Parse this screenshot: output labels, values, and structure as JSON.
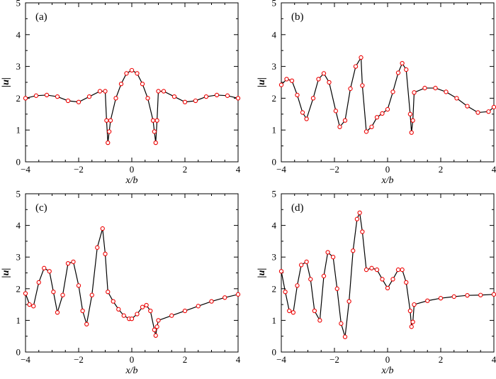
{
  "colors": {
    "curve": "#000000",
    "markers": "#ee0000",
    "axes": "#000000",
    "background": "#ffffff"
  },
  "chart_data": [
    {
      "type": "line",
      "panel_label": "(a)",
      "xlabel": "x/b",
      "ylabel": "|u|",
      "xlim": [
        -4,
        4
      ],
      "ylim": [
        0,
        5
      ],
      "xticks": [
        -4,
        -2,
        0,
        2,
        4
      ],
      "yticks": [
        0,
        1,
        2,
        3,
        4,
        5
      ],
      "grid": false,
      "legend": "none",
      "x": [
        -4.0,
        -3.6,
        -3.2,
        -2.8,
        -2.4,
        -2.0,
        -1.6,
        -1.2,
        -1.0,
        -0.95,
        -0.9,
        -0.85,
        -0.8,
        -0.6,
        -0.4,
        -0.2,
        0.0,
        0.2,
        0.4,
        0.6,
        0.8,
        0.85,
        0.9,
        0.95,
        1.0,
        1.2,
        1.6,
        2.0,
        2.4,
        2.8,
        3.2,
        3.6,
        4.0
      ],
      "y": [
        2.0,
        2.08,
        2.1,
        2.05,
        1.92,
        1.88,
        2.05,
        2.22,
        2.22,
        1.3,
        0.6,
        0.95,
        1.3,
        2.0,
        2.45,
        2.78,
        2.88,
        2.78,
        2.45,
        2.0,
        1.3,
        0.95,
        0.6,
        1.3,
        2.22,
        2.22,
        2.05,
        1.88,
        1.92,
        2.05,
        2.1,
        2.08,
        2.0
      ]
    },
    {
      "type": "line",
      "panel_label": "(b)",
      "xlabel": "x/b",
      "ylabel": "|u|",
      "xlim": [
        -4,
        4
      ],
      "ylim": [
        0,
        5
      ],
      "xticks": [
        -4,
        -2,
        0,
        2,
        4
      ],
      "yticks": [
        0,
        1,
        2,
        3,
        4,
        5
      ],
      "grid": false,
      "legend": "none",
      "x": [
        -4.0,
        -3.8,
        -3.6,
        -3.4,
        -3.2,
        -3.05,
        -2.8,
        -2.6,
        -2.4,
        -2.2,
        -1.95,
        -1.8,
        -1.6,
        -1.4,
        -1.2,
        -1.0,
        -0.95,
        -0.8,
        -0.6,
        -0.4,
        -0.2,
        0.0,
        0.2,
        0.4,
        0.55,
        0.7,
        0.85,
        0.9,
        0.95,
        1.0,
        1.4,
        1.8,
        2.2,
        2.6,
        3.0,
        3.4,
        3.8,
        4.0
      ],
      "y": [
        2.42,
        2.6,
        2.55,
        2.1,
        1.55,
        1.35,
        2.0,
        2.6,
        2.78,
        2.5,
        1.6,
        1.1,
        1.3,
        2.3,
        3.0,
        3.28,
        2.4,
        0.95,
        1.1,
        1.4,
        1.52,
        1.65,
        2.2,
        2.8,
        3.1,
        2.9,
        1.5,
        0.92,
        1.3,
        2.18,
        2.32,
        2.32,
        2.2,
        2.0,
        1.75,
        1.55,
        1.58,
        1.72
      ]
    },
    {
      "type": "line",
      "panel_label": "(c)",
      "xlabel": "x/b",
      "ylabel": "|u|",
      "xlim": [
        -4,
        4
      ],
      "ylim": [
        0,
        5
      ],
      "xticks": [
        -4,
        -2,
        0,
        2,
        4
      ],
      "yticks": [
        0,
        1,
        2,
        3,
        4,
        5
      ],
      "grid": false,
      "legend": "none",
      "x": [
        -4.0,
        -3.85,
        -3.7,
        -3.5,
        -3.3,
        -3.1,
        -2.95,
        -2.8,
        -2.6,
        -2.4,
        -2.2,
        -2.0,
        -1.85,
        -1.7,
        -1.5,
        -1.3,
        -1.1,
        -1.0,
        -0.9,
        -0.7,
        -0.5,
        -0.3,
        -0.1,
        0.0,
        0.2,
        0.4,
        0.55,
        0.7,
        0.85,
        0.9,
        0.95,
        1.0,
        1.5,
        2.0,
        2.5,
        3.0,
        3.5,
        4.0
      ],
      "y": [
        1.85,
        1.5,
        1.45,
        2.2,
        2.65,
        2.55,
        1.9,
        1.25,
        1.8,
        2.8,
        2.85,
        2.1,
        1.3,
        0.88,
        1.8,
        3.3,
        3.9,
        3.1,
        1.9,
        1.6,
        1.35,
        1.15,
        1.05,
        1.05,
        1.2,
        1.42,
        1.48,
        1.3,
        0.7,
        0.52,
        0.8,
        1.0,
        1.15,
        1.3,
        1.45,
        1.6,
        1.72,
        1.82
      ]
    },
    {
      "type": "line",
      "panel_label": "(d)",
      "xlabel": "x/b",
      "ylabel": "|u|",
      "xlim": [
        -4,
        4
      ],
      "ylim": [
        0,
        5
      ],
      "xticks": [
        -4,
        -2,
        0,
        2,
        4
      ],
      "yticks": [
        0,
        1,
        2,
        3,
        4,
        5
      ],
      "grid": false,
      "legend": "none",
      "x": [
        -4.0,
        -3.85,
        -3.7,
        -3.55,
        -3.4,
        -3.25,
        -3.05,
        -2.9,
        -2.75,
        -2.55,
        -2.4,
        -2.25,
        -2.05,
        -1.9,
        -1.75,
        -1.6,
        -1.45,
        -1.3,
        -1.15,
        -1.05,
        -0.95,
        -0.8,
        -0.6,
        -0.4,
        -0.2,
        0.0,
        0.2,
        0.4,
        0.55,
        0.7,
        0.85,
        0.9,
        0.95,
        1.0,
        1.5,
        2.0,
        2.5,
        3.0,
        3.5,
        4.0
      ],
      "y": [
        2.55,
        1.9,
        1.3,
        1.25,
        2.1,
        2.75,
        2.85,
        2.3,
        1.3,
        1.0,
        2.4,
        3.15,
        3.0,
        2.0,
        0.9,
        0.48,
        1.6,
        3.2,
        4.2,
        4.4,
        3.8,
        2.6,
        2.65,
        2.6,
        2.3,
        2.02,
        2.3,
        2.6,
        2.6,
        2.2,
        1.3,
        0.8,
        0.95,
        1.5,
        1.62,
        1.7,
        1.75,
        1.79,
        1.8,
        1.82
      ]
    }
  ]
}
